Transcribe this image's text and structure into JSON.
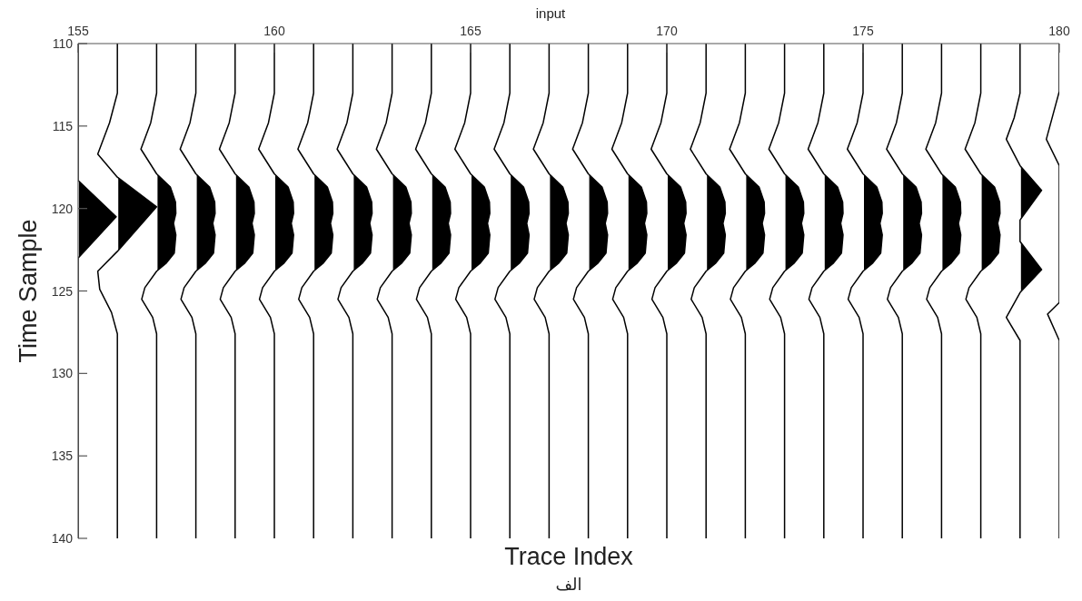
{
  "chart_data": {
    "type": "line",
    "title": "input",
    "xlabel": "Trace Index",
    "ylabel": "Time Sample",
    "annotations": [
      "الف"
    ],
    "xlim": [
      155,
      180
    ],
    "ylim": [
      140,
      110
    ],
    "xticks": [
      155,
      160,
      165,
      170,
      175,
      180
    ],
    "yticks": [
      110,
      115,
      120,
      125,
      130,
      135,
      140
    ],
    "series": [
      {
        "type": "area",
        "color": "#000000",
        "x": [
          155,
          155,
          155.97,
          155,
          155
        ],
        "values": [
          110,
          118.3,
          120.5,
          123,
          140
        ]
      },
      {
        "type": "area",
        "color": "#000000",
        "x": [
          156,
          156,
          155.8,
          155.5,
          156,
          157,
          156,
          155.5,
          155.55,
          155.85,
          156,
          156
        ],
        "values": [
          110,
          113,
          114.8,
          116.7,
          118.1,
          119.9,
          122.6,
          123.8,
          124.9,
          126.3,
          127.6,
          140
        ]
      },
      {
        "type": "area",
        "color": "#000000",
        "x": [
          157,
          157,
          156.85,
          156.6,
          157,
          157.35,
          157.48,
          157.49,
          157.43,
          157.49,
          157.45,
          157.25,
          157,
          156.7,
          156.62,
          156.9,
          157,
          157
        ],
        "values": [
          110,
          113,
          114.8,
          116.4,
          117.9,
          118.7,
          119.6,
          120.3,
          120.9,
          121.6,
          122.7,
          123.3,
          123.8,
          124.8,
          125.5,
          126.6,
          127.6,
          140
        ]
      },
      {
        "type": "area",
        "color": "#000000",
        "x": [
          158,
          158,
          157.85,
          157.6,
          158,
          158.35,
          158.48,
          158.49,
          158.43,
          158.49,
          158.45,
          158.25,
          158,
          157.7,
          157.62,
          157.9,
          158,
          158
        ],
        "values": [
          110,
          113,
          114.8,
          116.4,
          117.9,
          118.7,
          119.6,
          120.3,
          120.9,
          121.6,
          122.7,
          123.3,
          123.8,
          124.8,
          125.5,
          126.6,
          127.6,
          140
        ]
      },
      {
        "type": "area",
        "color": "#000000",
        "x": [
          159,
          159,
          158.85,
          158.6,
          159,
          159.35,
          159.48,
          159.49,
          159.43,
          159.49,
          159.45,
          159.25,
          159,
          158.7,
          158.62,
          158.9,
          159,
          159
        ],
        "values": [
          110,
          113,
          114.8,
          116.4,
          117.9,
          118.7,
          119.6,
          120.3,
          120.9,
          121.6,
          122.7,
          123.3,
          123.8,
          124.8,
          125.5,
          126.6,
          127.6,
          140
        ]
      },
      {
        "type": "area",
        "color": "#000000",
        "x": [
          160,
          160,
          159.85,
          159.6,
          160,
          160.35,
          160.48,
          160.49,
          160.43,
          160.49,
          160.45,
          160.25,
          160,
          159.7,
          159.62,
          159.9,
          160,
          160
        ],
        "values": [
          110,
          113,
          114.8,
          116.4,
          117.9,
          118.7,
          119.6,
          120.3,
          120.9,
          121.6,
          122.7,
          123.3,
          123.8,
          124.8,
          125.5,
          126.6,
          127.6,
          140
        ]
      },
      {
        "type": "area",
        "color": "#000000",
        "x": [
          161,
          161,
          160.85,
          160.6,
          161,
          161.35,
          161.48,
          161.49,
          161.43,
          161.49,
          161.45,
          161.25,
          161,
          160.7,
          160.62,
          160.9,
          161,
          161
        ],
        "values": [
          110,
          113,
          114.8,
          116.4,
          117.9,
          118.7,
          119.6,
          120.3,
          120.9,
          121.6,
          122.7,
          123.3,
          123.8,
          124.8,
          125.5,
          126.6,
          127.6,
          140
        ]
      },
      {
        "type": "area",
        "color": "#000000",
        "x": [
          162,
          162,
          161.85,
          161.6,
          162,
          162.35,
          162.48,
          162.49,
          162.43,
          162.49,
          162.45,
          162.25,
          162,
          161.7,
          161.62,
          161.9,
          162,
          162
        ],
        "values": [
          110,
          113,
          114.8,
          116.4,
          117.9,
          118.7,
          119.6,
          120.3,
          120.9,
          121.6,
          122.7,
          123.3,
          123.8,
          124.8,
          125.5,
          126.6,
          127.6,
          140
        ]
      },
      {
        "type": "area",
        "color": "#000000",
        "x": [
          163,
          163,
          162.85,
          162.6,
          163,
          163.35,
          163.48,
          163.49,
          163.43,
          163.49,
          163.45,
          163.25,
          163,
          162.7,
          162.62,
          162.9,
          163,
          163
        ],
        "values": [
          110,
          113,
          114.8,
          116.4,
          117.9,
          118.7,
          119.6,
          120.3,
          120.9,
          121.6,
          122.7,
          123.3,
          123.8,
          124.8,
          125.5,
          126.6,
          127.6,
          140
        ]
      },
      {
        "type": "area",
        "color": "#000000",
        "x": [
          164,
          164,
          163.85,
          163.6,
          164,
          164.35,
          164.48,
          164.49,
          164.43,
          164.49,
          164.45,
          164.25,
          164,
          163.7,
          163.62,
          163.9,
          164,
          164
        ],
        "values": [
          110,
          113,
          114.8,
          116.4,
          117.9,
          118.7,
          119.6,
          120.3,
          120.9,
          121.6,
          122.7,
          123.3,
          123.8,
          124.8,
          125.5,
          126.6,
          127.6,
          140
        ]
      },
      {
        "type": "area",
        "color": "#000000",
        "x": [
          165,
          165,
          164.85,
          164.6,
          165,
          165.35,
          165.48,
          165.49,
          165.43,
          165.49,
          165.45,
          165.25,
          165,
          164.7,
          164.62,
          164.9,
          165,
          165
        ],
        "values": [
          110,
          113,
          114.8,
          116.4,
          117.9,
          118.7,
          119.6,
          120.3,
          120.9,
          121.6,
          122.7,
          123.3,
          123.8,
          124.8,
          125.5,
          126.6,
          127.6,
          140
        ]
      },
      {
        "type": "area",
        "color": "#000000",
        "x": [
          166,
          166,
          165.85,
          165.6,
          166,
          166.35,
          166.48,
          166.49,
          166.43,
          166.49,
          166.45,
          166.25,
          166,
          165.7,
          165.62,
          165.9,
          166,
          166
        ],
        "values": [
          110,
          113,
          114.8,
          116.4,
          117.9,
          118.7,
          119.6,
          120.3,
          120.9,
          121.6,
          122.7,
          123.3,
          123.8,
          124.8,
          125.5,
          126.6,
          127.6,
          140
        ]
      },
      {
        "type": "area",
        "color": "#000000",
        "x": [
          167,
          167,
          166.85,
          166.6,
          167,
          167.35,
          167.48,
          167.49,
          167.43,
          167.49,
          167.45,
          167.25,
          167,
          166.7,
          166.62,
          166.9,
          167,
          167
        ],
        "values": [
          110,
          113,
          114.8,
          116.4,
          117.9,
          118.7,
          119.6,
          120.3,
          120.9,
          121.6,
          122.7,
          123.3,
          123.8,
          124.8,
          125.5,
          126.6,
          127.6,
          140
        ]
      },
      {
        "type": "area",
        "color": "#000000",
        "x": [
          168,
          168,
          167.85,
          167.6,
          168,
          168.35,
          168.48,
          168.49,
          168.43,
          168.49,
          168.45,
          168.25,
          168,
          167.7,
          167.62,
          167.9,
          168,
          168
        ],
        "values": [
          110,
          113,
          114.8,
          116.4,
          117.9,
          118.7,
          119.6,
          120.3,
          120.9,
          121.6,
          122.7,
          123.3,
          123.8,
          124.8,
          125.5,
          126.6,
          127.6,
          140
        ]
      },
      {
        "type": "area",
        "color": "#000000",
        "x": [
          169,
          169,
          168.85,
          168.6,
          169,
          169.35,
          169.48,
          169.49,
          169.43,
          169.49,
          169.45,
          169.25,
          169,
          168.7,
          168.62,
          168.9,
          169,
          169
        ],
        "values": [
          110,
          113,
          114.8,
          116.4,
          117.9,
          118.7,
          119.6,
          120.3,
          120.9,
          121.6,
          122.7,
          123.3,
          123.8,
          124.8,
          125.5,
          126.6,
          127.6,
          140
        ]
      },
      {
        "type": "area",
        "color": "#000000",
        "x": [
          170,
          170,
          169.85,
          169.6,
          170,
          170.35,
          170.48,
          170.49,
          170.43,
          170.49,
          170.45,
          170.25,
          170,
          169.7,
          169.62,
          169.9,
          170,
          170
        ],
        "values": [
          110,
          113,
          114.8,
          116.4,
          117.9,
          118.7,
          119.6,
          120.3,
          120.9,
          121.6,
          122.7,
          123.3,
          123.8,
          124.8,
          125.5,
          126.6,
          127.6,
          140
        ]
      },
      {
        "type": "area",
        "color": "#000000",
        "x": [
          171,
          171,
          170.85,
          170.6,
          171,
          171.35,
          171.48,
          171.49,
          171.43,
          171.49,
          171.45,
          171.25,
          171,
          170.7,
          170.62,
          170.9,
          171,
          171
        ],
        "values": [
          110,
          113,
          114.8,
          116.4,
          117.9,
          118.7,
          119.6,
          120.3,
          120.9,
          121.6,
          122.7,
          123.3,
          123.8,
          124.8,
          125.5,
          126.6,
          127.6,
          140
        ]
      },
      {
        "type": "area",
        "color": "#000000",
        "x": [
          172,
          172,
          171.85,
          171.6,
          172,
          172.35,
          172.48,
          172.49,
          172.43,
          172.49,
          172.45,
          172.25,
          172,
          171.7,
          171.62,
          171.9,
          172,
          172
        ],
        "values": [
          110,
          113,
          114.8,
          116.4,
          117.9,
          118.7,
          119.6,
          120.3,
          120.9,
          121.6,
          122.7,
          123.3,
          123.8,
          124.8,
          125.5,
          126.6,
          127.6,
          140
        ]
      },
      {
        "type": "area",
        "color": "#000000",
        "x": [
          173,
          173,
          172.85,
          172.6,
          173,
          173.35,
          173.48,
          173.49,
          173.43,
          173.49,
          173.45,
          173.25,
          173,
          172.7,
          172.62,
          172.9,
          173,
          173
        ],
        "values": [
          110,
          113,
          114.8,
          116.4,
          117.9,
          118.7,
          119.6,
          120.3,
          120.9,
          121.6,
          122.7,
          123.3,
          123.8,
          124.8,
          125.5,
          126.6,
          127.6,
          140
        ]
      },
      {
        "type": "area",
        "color": "#000000",
        "x": [
          174,
          174,
          173.85,
          173.6,
          174,
          174.35,
          174.48,
          174.49,
          174.43,
          174.49,
          174.45,
          174.25,
          174,
          173.7,
          173.62,
          173.9,
          174,
          174
        ],
        "values": [
          110,
          113,
          114.8,
          116.4,
          117.9,
          118.7,
          119.6,
          120.3,
          120.9,
          121.6,
          122.7,
          123.3,
          123.8,
          124.8,
          125.5,
          126.6,
          127.6,
          140
        ]
      },
      {
        "type": "area",
        "color": "#000000",
        "x": [
          175,
          175,
          174.85,
          174.6,
          175,
          175.35,
          175.48,
          175.49,
          175.43,
          175.49,
          175.45,
          175.25,
          175,
          174.7,
          174.62,
          174.9,
          175,
          175
        ],
        "values": [
          110,
          113,
          114.8,
          116.4,
          117.9,
          118.7,
          119.6,
          120.3,
          120.9,
          121.6,
          122.7,
          123.3,
          123.8,
          124.8,
          125.5,
          126.6,
          127.6,
          140
        ]
      },
      {
        "type": "area",
        "color": "#000000",
        "x": [
          176,
          176,
          175.85,
          175.6,
          176,
          176.35,
          176.48,
          176.49,
          176.43,
          176.49,
          176.45,
          176.25,
          176,
          175.7,
          175.62,
          175.9,
          176,
          176
        ],
        "values": [
          110,
          113,
          114.8,
          116.4,
          117.9,
          118.7,
          119.6,
          120.3,
          120.9,
          121.6,
          122.7,
          123.3,
          123.8,
          124.8,
          125.5,
          126.6,
          127.6,
          140
        ]
      },
      {
        "type": "area",
        "color": "#000000",
        "x": [
          177,
          177,
          176.85,
          176.6,
          177,
          177.35,
          177.48,
          177.49,
          177.43,
          177.49,
          177.45,
          177.25,
          177,
          176.7,
          176.62,
          176.9,
          177,
          177
        ],
        "values": [
          110,
          113,
          114.8,
          116.4,
          117.9,
          118.7,
          119.6,
          120.3,
          120.9,
          121.6,
          122.7,
          123.3,
          123.8,
          124.8,
          125.5,
          126.6,
          127.6,
          140
        ]
      },
      {
        "type": "area",
        "color": "#000000",
        "x": [
          178,
          178,
          177.85,
          177.6,
          178,
          178.35,
          178.48,
          178.49,
          178.43,
          178.49,
          178.45,
          178.25,
          178,
          177.7,
          177.62,
          177.9,
          178,
          178
        ],
        "values": [
          110,
          113,
          114.8,
          116.4,
          117.9,
          118.7,
          119.6,
          120.3,
          120.9,
          121.6,
          122.7,
          123.3,
          123.8,
          124.8,
          125.5,
          126.6,
          127.6,
          140
        ]
      },
      {
        "type": "area",
        "color": "#000000",
        "x": [
          179,
          179,
          178.85,
          178.65,
          179,
          179.55,
          179,
          179,
          179.55,
          179,
          178.65,
          179,
          179
        ],
        "values": [
          110,
          113,
          114.5,
          115.8,
          117.4,
          118.9,
          120.7,
          122,
          123.7,
          125.1,
          126.6,
          128,
          140
        ]
      },
      {
        "color": "#000000",
        "x": [
          180,
          180,
          179.67,
          180,
          180,
          179.7,
          180,
          180
        ],
        "values": [
          110,
          112.9,
          115.8,
          117.4,
          125.7,
          126.4,
          128,
          140
        ]
      }
    ]
  }
}
